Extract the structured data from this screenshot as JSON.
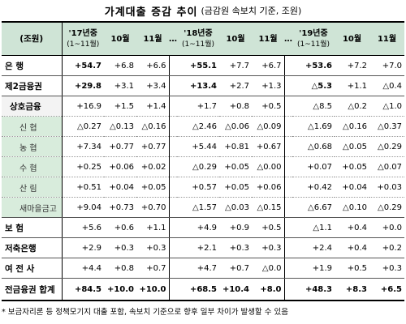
{
  "title": "가계대출 증감 추이",
  "subtitle": "(금감원 속보치 기준, 조원)",
  "table": {
    "unit_label": "(조원)",
    "header": {
      "y17": "'17년중",
      "y17_sub": "(1~11월)",
      "y18": "'18년중",
      "y18_sub": "(1~11월)",
      "y19": "'19년중",
      "y19_sub": "(1~11월)",
      "oct": "10월",
      "nov": "11월",
      "gap": "…"
    },
    "rows": [
      {
        "label": "은    행",
        "v": [
          "+54.7",
          "+6.8",
          "+6.6",
          "+55.1",
          "+7.7",
          "+6.7",
          "+53.6",
          "+7.2",
          "+7.0"
        ]
      },
      {
        "label": "제2금융권",
        "v": [
          "+29.8",
          "+3.1",
          "+3.4",
          "+13.4",
          "+2.7",
          "+1.3",
          "△5.3",
          "+1.1",
          "△0.4"
        ]
      },
      {
        "label": "상호금융",
        "v": [
          "+16.9",
          "+1.5",
          "+1.4",
          "+1.7",
          "+0.8",
          "+0.5",
          "△8.5",
          "△0.2",
          "△1.0"
        ]
      },
      {
        "label": "신  협",
        "v": [
          "△0.27",
          "△0.13",
          "△0.16",
          "△2.46",
          "△0.06",
          "△0.09",
          "△1.69",
          "△0.16",
          "△0.37"
        ]
      },
      {
        "label": "농  협",
        "v": [
          "+7.34",
          "+0.77",
          "+0.77",
          "+5.44",
          "+0.81",
          "+0.67",
          "△0.68",
          "△0.05",
          "△0.29"
        ]
      },
      {
        "label": "수  협",
        "v": [
          "+0.25",
          "+0.06",
          "+0.02",
          "△0.29",
          "+0.05",
          "△0.00",
          "+0.07",
          "+0.05",
          "△0.07"
        ]
      },
      {
        "label": "산  림",
        "v": [
          "+0.51",
          "+0.04",
          "+0.05",
          "+0.57",
          "+0.05",
          "+0.06",
          "+0.42",
          "+0.04",
          "+0.03"
        ]
      },
      {
        "label": "새마을금고",
        "v": [
          "+9.04",
          "+0.73",
          "+0.70",
          "△1.57",
          "△0.03",
          "△0.15",
          "△6.67",
          "△0.10",
          "△0.29"
        ]
      },
      {
        "label": "보    험",
        "v": [
          "+5.6",
          "+0.6",
          "+1.1",
          "+4.9",
          "+0.9",
          "+0.5",
          "△1.1",
          "+0.4",
          "+0.0"
        ]
      },
      {
        "label": "저축은행",
        "v": [
          "+2.9",
          "+0.3",
          "+0.3",
          "+2.1",
          "+0.3",
          "+0.3",
          "+2.4",
          "+0.4",
          "+0.2"
        ]
      },
      {
        "label": "여 전 사",
        "v": [
          "+4.4",
          "+0.8",
          "+0.7",
          "+4.7",
          "+0.7",
          "△0.0",
          "+1.9",
          "+0.5",
          "+0.3"
        ]
      },
      {
        "label": "전금융권 합계",
        "v": [
          "+84.5",
          "+10.0",
          "+10.0",
          "+68.5",
          "+10.4",
          "+8.0",
          "+48.3",
          "+8.3",
          "+6.5"
        ]
      }
    ]
  },
  "footnote": "* 보금자리론 등 정책모기지 대출 포함, 속보치 기준으로 향후 일부 차이가 발생할 수 있음"
}
